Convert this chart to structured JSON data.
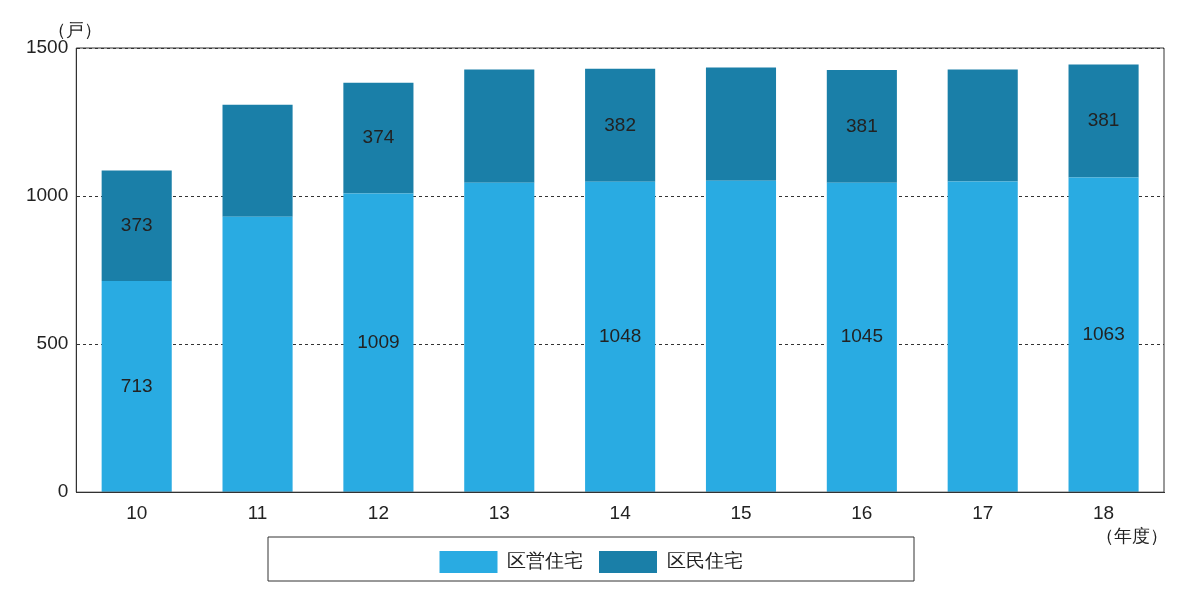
{
  "chart_data": {
    "type": "bar",
    "stacked": true,
    "ylabel": "（戸）",
    "xlabel": "（年度）",
    "categories": [
      "10",
      "11",
      "12",
      "13",
      "14",
      "15",
      "16",
      "17",
      "18"
    ],
    "series": [
      {
        "name": "区営住宅",
        "color": "#29abe2",
        "values": [
          713,
          930,
          1009,
          1045,
          1048,
          1052,
          1045,
          1049,
          1063
        ],
        "value_labels": [
          "713",
          null,
          "1009",
          null,
          "1048",
          null,
          "1045",
          null,
          "1063"
        ]
      },
      {
        "name": "区民住宅",
        "color": "#1a7fa8",
        "values": [
          373,
          378,
          374,
          382,
          382,
          382,
          381,
          378,
          381
        ],
        "value_labels": [
          "373",
          null,
          "374",
          null,
          "382",
          null,
          "381",
          null,
          "381"
        ]
      }
    ],
    "ylim": [
      0,
      1500
    ],
    "yticks": [
      0,
      500,
      1000,
      1500
    ],
    "grid": "y",
    "legend": "bottom"
  }
}
